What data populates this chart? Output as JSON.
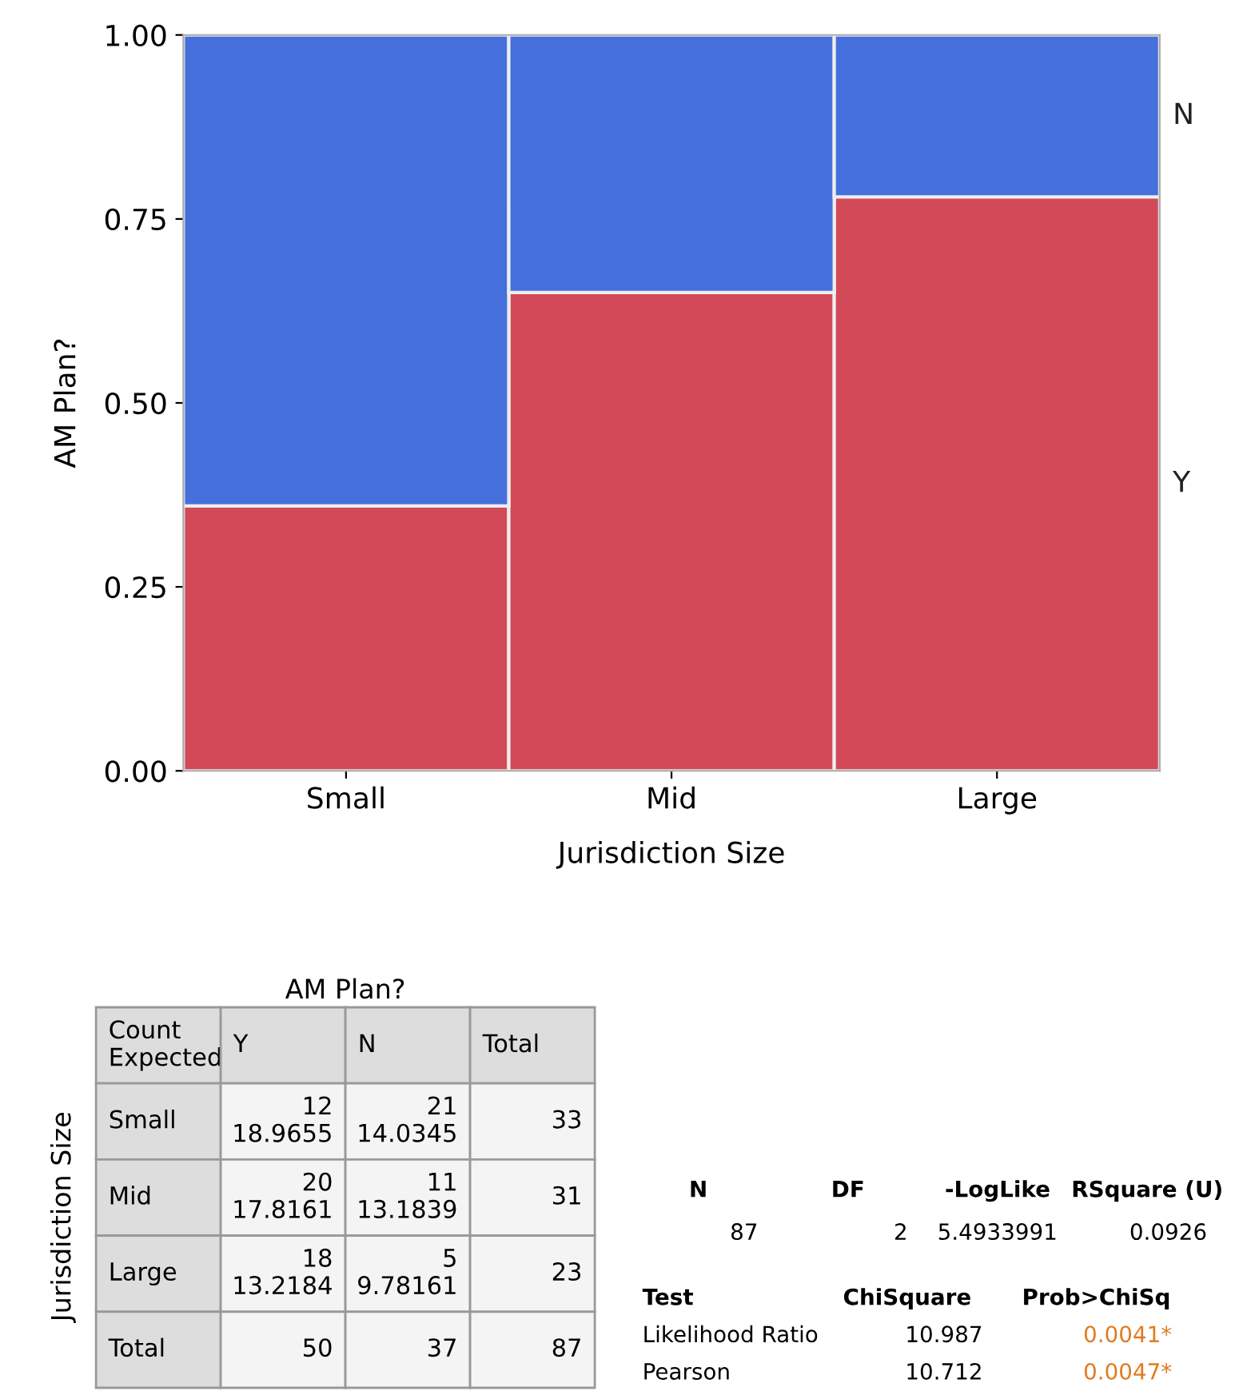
{
  "chart_data": [
    {
      "type": "bar",
      "stacked": true,
      "xlabel": "Jurisdiction Size",
      "ylabel": "AM Plan?",
      "categories": [
        "Small",
        "Mid",
        "Large"
      ],
      "series": [
        {
          "name": "Y",
          "color": "#d24a58",
          "values": [
            0.36,
            0.65,
            0.78
          ]
        },
        {
          "name": "N",
          "color": "#4570dc",
          "values": [
            0.64,
            0.35,
            0.22
          ]
        }
      ],
      "ylim": [
        0,
        1
      ],
      "yticks": [
        {
          "value": 0,
          "label": "0.00"
        },
        {
          "value": 0.25,
          "label": "0.25"
        },
        {
          "value": 0.5,
          "label": "0.50"
        },
        {
          "value": 0.75,
          "label": "0.75"
        },
        {
          "value": 1,
          "label": "1.00"
        }
      ],
      "legend": "right",
      "grid": false
    },
    {
      "type": "other",
      "title": "AM Plan?",
      "ylabel": "Jurisdiction Size",
      "categories": [
        "Count\nExpected",
        "Y",
        "N",
        "Total"
      ],
      "annotations": [
        "Small",
        "12\n18.9655",
        "21\n14.0345",
        "33",
        "Mid",
        "20\n17.8161",
        "11\n13.1839",
        "31",
        "Large",
        "18\n13.2184",
        "5\n9.78161",
        "23",
        "Total",
        "50",
        "37",
        "87"
      ]
    },
    {
      "type": "other",
      "categories": [
        "N",
        "DF",
        "-LogLike",
        "RSquare (U)"
      ],
      "annotations": [
        "87",
        "2",
        "5.4933991",
        "0.0926"
      ]
    },
    {
      "type": "other",
      "categories": [
        "Test",
        "ChiSquare",
        "Prob>ChiSq"
      ],
      "annotations": [
        "Likelihood Ratio",
        "10.987",
        "0.0041*",
        "Pearson",
        "10.712",
        "0.0047*"
      ]
    }
  ]
}
